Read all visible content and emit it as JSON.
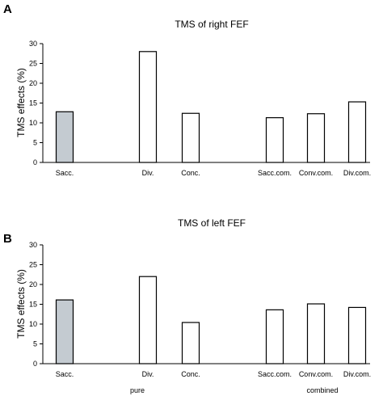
{
  "chart_data": [
    {
      "type": "bar",
      "panel": "A",
      "title": "TMS of right FEF",
      "xlabel": "",
      "ylabel": "TMS effects (%)",
      "ylim": [
        0,
        30
      ],
      "yticks": [
        0,
        5,
        10,
        15,
        20,
        25,
        30
      ],
      "categories": [
        "Sacc.",
        "Div.",
        "Conc.",
        "Sacc.com.",
        "Conv.com.",
        "Div.com."
      ],
      "values": [
        12.8,
        28.0,
        12.4,
        11.3,
        12.3,
        15.3
      ],
      "colors": [
        "#c4cbd1",
        "#ffffff",
        "#ffffff",
        "#ffffff",
        "#ffffff",
        "#ffffff"
      ],
      "grid": false
    },
    {
      "type": "bar",
      "panel": "B",
      "title": "TMS of left FEF",
      "xlabel": "",
      "ylabel": "TMS effects (%)",
      "ylim": [
        0,
        30
      ],
      "yticks": [
        0,
        5,
        10,
        15,
        20,
        25,
        30
      ],
      "categories": [
        "Sacc.",
        "Div.",
        "Conc.",
        "Sacc.com.",
        "Conv.com.",
        "Div.com."
      ],
      "values": [
        16.1,
        22.0,
        10.4,
        13.6,
        15.1,
        14.2
      ],
      "colors": [
        "#c4cbd1",
        "#ffffff",
        "#ffffff",
        "#ffffff",
        "#ffffff",
        "#ffffff"
      ],
      "grid": false,
      "group_labels": [
        "pure",
        "combined"
      ]
    }
  ]
}
